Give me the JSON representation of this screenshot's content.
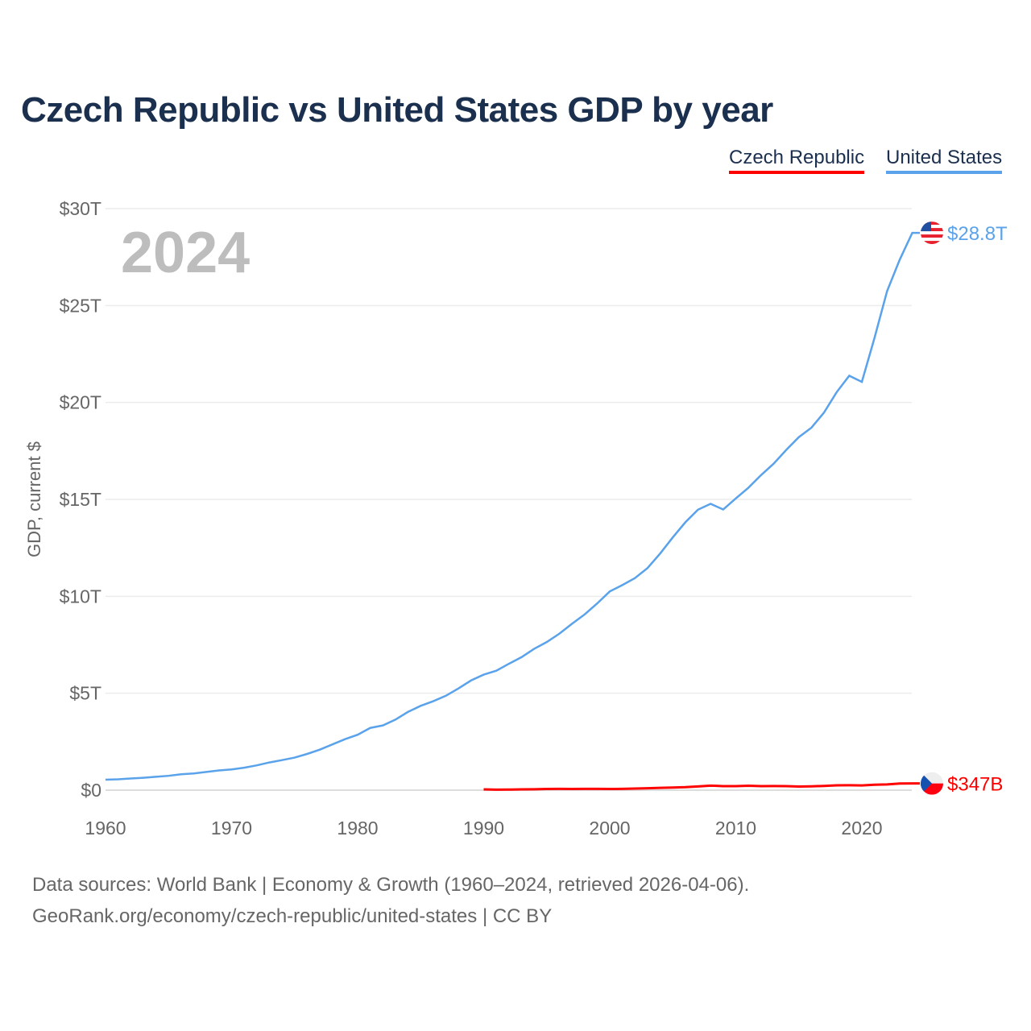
{
  "title": "Czech Republic vs United States GDP by year",
  "year_label": "2024",
  "footer": {
    "line1": "Data sources: World Bank | Economy & Growth (1960–2024, retrieved 2026-04-06).",
    "line2": "GeoRank.org/economy/czech-republic/united-states | CC BY"
  },
  "chart_data": {
    "type": "line",
    "title": "Czech Republic vs United States GDP by year",
    "xlabel": "",
    "ylabel": "GDP, current $",
    "xlim": [
      1960,
      2024
    ],
    "ylim": [
      0,
      30
    ],
    "x_ticks": [
      1960,
      1970,
      1980,
      1990,
      2000,
      2010,
      2020
    ],
    "x_tick_labels": [
      "1960",
      "1970",
      "1980",
      "1990",
      "2000",
      "2010",
      "2020"
    ],
    "y_ticks": [
      0,
      5,
      10,
      15,
      20,
      25,
      30
    ],
    "y_tick_labels": [
      "$0",
      "$5T",
      "$10T",
      "$15T",
      "$20T",
      "$25T",
      "$30T"
    ],
    "legend_position": "top-right",
    "grid": true,
    "series": [
      {
        "name": "Czech Republic",
        "color": "#ff0000",
        "end_label": "$347B",
        "flag": "czech-flag",
        "x": [
          1990,
          1991,
          1992,
          1993,
          1994,
          1995,
          1996,
          1997,
          1998,
          1999,
          2000,
          2001,
          2002,
          2003,
          2004,
          2005,
          2006,
          2007,
          2008,
          2009,
          2010,
          2011,
          2012,
          2013,
          2014,
          2015,
          2016,
          2017,
          2018,
          2019,
          2020,
          2021,
          2022,
          2023,
          2024
        ],
        "values": [
          0.04,
          0.025,
          0.03,
          0.04,
          0.047,
          0.06,
          0.067,
          0.062,
          0.067,
          0.065,
          0.062,
          0.068,
          0.083,
          0.101,
          0.119,
          0.136,
          0.155,
          0.19,
          0.236,
          0.208,
          0.209,
          0.23,
          0.208,
          0.211,
          0.21,
          0.188,
          0.197,
          0.219,
          0.25,
          0.253,
          0.246,
          0.282,
          0.297,
          0.343,
          0.347
        ]
      },
      {
        "name": "United States",
        "color": "#5aa2ea",
        "end_label": "$28.8T",
        "flag": "us-flag",
        "x": [
          1960,
          1961,
          1962,
          1963,
          1964,
          1965,
          1966,
          1967,
          1968,
          1969,
          1970,
          1971,
          1972,
          1973,
          1974,
          1975,
          1976,
          1977,
          1978,
          1979,
          1980,
          1981,
          1982,
          1983,
          1984,
          1985,
          1986,
          1987,
          1988,
          1989,
          1990,
          1991,
          1992,
          1993,
          1994,
          1995,
          1996,
          1997,
          1998,
          1999,
          2000,
          2001,
          2002,
          2003,
          2004,
          2005,
          2006,
          2007,
          2008,
          2009,
          2010,
          2011,
          2012,
          2013,
          2014,
          2015,
          2016,
          2017,
          2018,
          2019,
          2020,
          2021,
          2022,
          2023,
          2024
        ],
        "values": [
          0.54,
          0.56,
          0.6,
          0.64,
          0.69,
          0.74,
          0.82,
          0.86,
          0.94,
          1.02,
          1.07,
          1.16,
          1.28,
          1.43,
          1.55,
          1.68,
          1.87,
          2.09,
          2.36,
          2.63,
          2.86,
          3.21,
          3.34,
          3.64,
          4.04,
          4.35,
          4.59,
          4.87,
          5.25,
          5.66,
          5.96,
          6.16,
          6.52,
          6.86,
          7.29,
          7.64,
          8.07,
          8.58,
          9.06,
          9.63,
          10.25,
          10.58,
          10.94,
          11.46,
          12.21,
          13.04,
          13.82,
          14.47,
          14.77,
          14.48,
          15.05,
          15.6,
          16.25,
          16.84,
          17.55,
          18.21,
          18.7,
          19.48,
          20.53,
          21.38,
          21.06,
          23.32,
          25.74,
          27.36,
          28.75
        ]
      }
    ]
  }
}
